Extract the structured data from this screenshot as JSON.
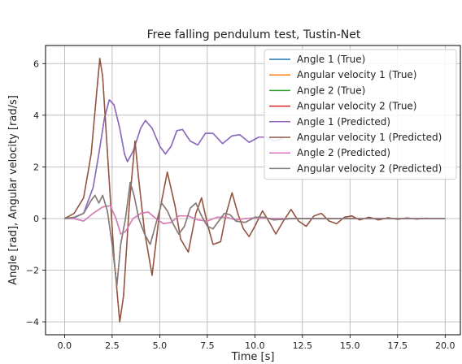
{
  "chart_data": {
    "type": "line",
    "title": "Free falling pendulum test, Tustin-Net",
    "xlabel": "Time [s]",
    "ylabel": "Angle [rad], Angular velocity [rad/s]",
    "xlim": [
      -1,
      20.8
    ],
    "ylim": [
      -4.5,
      6.7
    ],
    "xticks": [
      0.0,
      2.5,
      5.0,
      7.5,
      10.0,
      12.5,
      15.0,
      17.5,
      20.0
    ],
    "xtick_labels": [
      "0.0",
      "2.5",
      "5.0",
      "7.5",
      "10.0",
      "12.5",
      "15.0",
      "17.5",
      "20.0"
    ],
    "yticks": [
      -4,
      -2,
      0,
      2,
      4,
      6
    ],
    "ytick_labels": [
      "−4",
      "−2",
      "0",
      "2",
      "4",
      "6"
    ],
    "grid": true,
    "legend_position": "top-right",
    "series": [
      {
        "name": "Angle 1 (True)",
        "color": "#1f77b4",
        "points": [
          [
            0,
            0
          ],
          [
            0.5,
            0.03
          ],
          [
            1.0,
            0.2
          ],
          [
            1.5,
            1.2
          ],
          [
            1.8,
            2.5
          ],
          [
            2.1,
            3.9
          ],
          [
            2.35,
            4.6
          ],
          [
            2.6,
            4.4
          ],
          [
            2.9,
            3.5
          ],
          [
            3.15,
            2.5
          ],
          [
            3.3,
            2.2
          ],
          [
            3.6,
            2.6
          ],
          [
            4.0,
            3.5
          ],
          [
            4.25,
            3.8
          ],
          [
            4.6,
            3.5
          ],
          [
            5.0,
            2.8
          ],
          [
            5.3,
            2.5
          ],
          [
            5.6,
            2.8
          ],
          [
            5.9,
            3.4
          ],
          [
            6.2,
            3.45
          ],
          [
            6.6,
            3.0
          ],
          [
            7.0,
            2.85
          ],
          [
            7.4,
            3.3
          ],
          [
            7.8,
            3.3
          ],
          [
            8.3,
            2.9
          ],
          [
            8.8,
            3.2
          ],
          [
            9.2,
            3.25
          ],
          [
            9.7,
            2.95
          ],
          [
            10.2,
            3.15
          ],
          [
            10.6,
            3.15
          ],
          [
            11.0,
            3.0
          ],
          [
            11.5,
            3.1
          ]
        ]
      },
      {
        "name": "Angular velocity 1 (True)",
        "color": "#ff7f0e",
        "points": [
          [
            0,
            0
          ],
          [
            0.5,
            0.2
          ],
          [
            1.0,
            0.8
          ],
          [
            1.4,
            2.5
          ],
          [
            1.7,
            5.0
          ],
          [
            1.85,
            6.2
          ],
          [
            2.0,
            5.5
          ],
          [
            2.3,
            2.0
          ],
          [
            2.6,
            -1.5
          ],
          [
            2.9,
            -4.0
          ],
          [
            3.1,
            -3.0
          ],
          [
            3.4,
            0.5
          ],
          [
            3.7,
            3.0
          ],
          [
            3.9,
            1.5
          ],
          [
            4.2,
            -0.5
          ],
          [
            4.6,
            -2.2
          ],
          [
            5.0,
            0.3
          ],
          [
            5.4,
            1.8
          ],
          [
            5.8,
            0.5
          ],
          [
            6.1,
            -0.8
          ],
          [
            6.5,
            -1.3
          ],
          [
            6.9,
            0.2
          ],
          [
            7.2,
            0.8
          ],
          [
            7.5,
            -0.2
          ],
          [
            7.8,
            -1.0
          ],
          [
            8.2,
            -0.9
          ],
          [
            8.5,
            0.2
          ],
          [
            8.8,
            1.0
          ],
          [
            9.1,
            0.2
          ],
          [
            9.4,
            -0.4
          ],
          [
            9.7,
            -0.7
          ],
          [
            10.0,
            -0.3
          ],
          [
            10.4,
            0.3
          ],
          [
            10.8,
            -0.2
          ],
          [
            11.1,
            -0.6
          ],
          [
            11.5,
            -0.1
          ],
          [
            11.9,
            0.35
          ],
          [
            12.3,
            -0.1
          ],
          [
            12.7,
            -0.3
          ],
          [
            13.1,
            0.1
          ],
          [
            13.5,
            0.2
          ],
          [
            13.9,
            -0.1
          ],
          [
            14.3,
            -0.2
          ],
          [
            14.7,
            0.05
          ],
          [
            15.1,
            0.1
          ],
          [
            15.5,
            -0.05
          ],
          [
            16.0,
            0.05
          ],
          [
            16.5,
            -0.05
          ],
          [
            17.0,
            0.03
          ],
          [
            17.5,
            -0.03
          ],
          [
            18.0,
            0.02
          ],
          [
            18.5,
            -0.02
          ],
          [
            19.0,
            0.01
          ],
          [
            19.5,
            0.0
          ],
          [
            20.0,
            0.0
          ]
        ]
      },
      {
        "name": "Angle 2 (True)",
        "color": "#2ca02c",
        "points": [
          [
            0,
            0
          ],
          [
            0.5,
            0.0
          ],
          [
            1.0,
            -0.1
          ],
          [
            1.5,
            0.2
          ],
          [
            2.0,
            0.45
          ],
          [
            2.4,
            0.5
          ],
          [
            2.7,
            0.0
          ],
          [
            2.95,
            -0.6
          ],
          [
            3.2,
            -0.5
          ],
          [
            3.6,
            0.0
          ],
          [
            4.0,
            0.2
          ],
          [
            4.4,
            0.25
          ],
          [
            4.8,
            0.0
          ],
          [
            5.2,
            -0.2
          ],
          [
            5.6,
            -0.15
          ],
          [
            6.0,
            0.1
          ],
          [
            6.5,
            0.1
          ],
          [
            7.0,
            -0.05
          ],
          [
            7.5,
            -0.1
          ],
          [
            8.0,
            0.05
          ],
          [
            8.5,
            0.05
          ],
          [
            9.0,
            -0.05
          ],
          [
            9.5,
            0.0
          ],
          [
            10.0,
            0.02
          ],
          [
            11.0,
            0.0
          ],
          [
            12.0,
            0.0
          ],
          [
            20.0,
            0.0
          ]
        ]
      },
      {
        "name": "Angular velocity 2 (True)",
        "color": "#d62728",
        "points": [
          [
            0,
            0
          ],
          [
            0.5,
            0.05
          ],
          [
            1.0,
            0.2
          ],
          [
            1.4,
            0.7
          ],
          [
            1.6,
            0.9
          ],
          [
            1.8,
            0.6
          ],
          [
            2.0,
            0.9
          ],
          [
            2.25,
            0.3
          ],
          [
            2.5,
            -1.0
          ],
          [
            2.75,
            -2.6
          ],
          [
            2.95,
            -1.0
          ],
          [
            3.2,
            0.0
          ],
          [
            3.45,
            1.4
          ],
          [
            3.65,
            0.9
          ],
          [
            3.9,
            0.0
          ],
          [
            4.2,
            -0.6
          ],
          [
            4.5,
            -1.0
          ],
          [
            4.8,
            -0.2
          ],
          [
            5.1,
            0.6
          ],
          [
            5.4,
            0.3
          ],
          [
            5.7,
            -0.2
          ],
          [
            6.0,
            -0.6
          ],
          [
            6.3,
            -0.3
          ],
          [
            6.6,
            0.4
          ],
          [
            6.9,
            0.6
          ],
          [
            7.2,
            0.1
          ],
          [
            7.5,
            -0.3
          ],
          [
            7.8,
            -0.4
          ],
          [
            8.1,
            -0.1
          ],
          [
            8.4,
            0.2
          ],
          [
            8.7,
            0.15
          ],
          [
            9.0,
            -0.1
          ],
          [
            9.5,
            -0.15
          ],
          [
            10.0,
            0.05
          ],
          [
            10.5,
            0.05
          ],
          [
            11.0,
            -0.05
          ],
          [
            12.0,
            0.0
          ],
          [
            13.0,
            0.0
          ],
          [
            20.0,
            0.0
          ]
        ]
      },
      {
        "name": "Angle 1 (Predicted)",
        "color": "#9467bd",
        "points": [
          [
            0,
            0
          ],
          [
            0.5,
            0.03
          ],
          [
            1.0,
            0.2
          ],
          [
            1.5,
            1.2
          ],
          [
            1.8,
            2.5
          ],
          [
            2.1,
            3.9
          ],
          [
            2.35,
            4.6
          ],
          [
            2.6,
            4.4
          ],
          [
            2.9,
            3.5
          ],
          [
            3.15,
            2.5
          ],
          [
            3.3,
            2.2
          ],
          [
            3.6,
            2.6
          ],
          [
            4.0,
            3.5
          ],
          [
            4.25,
            3.8
          ],
          [
            4.6,
            3.5
          ],
          [
            5.0,
            2.8
          ],
          [
            5.3,
            2.5
          ],
          [
            5.6,
            2.8
          ],
          [
            5.9,
            3.4
          ],
          [
            6.2,
            3.45
          ],
          [
            6.6,
            3.0
          ],
          [
            7.0,
            2.85
          ],
          [
            7.4,
            3.3
          ],
          [
            7.8,
            3.3
          ],
          [
            8.3,
            2.9
          ],
          [
            8.8,
            3.2
          ],
          [
            9.2,
            3.25
          ],
          [
            9.7,
            2.95
          ],
          [
            10.2,
            3.15
          ],
          [
            10.6,
            3.15
          ],
          [
            11.0,
            3.0
          ],
          [
            11.5,
            3.1
          ]
        ]
      },
      {
        "name": "Angular velocity 1 (Predicted)",
        "color": "#8c564b",
        "points": [
          [
            0,
            0
          ],
          [
            0.5,
            0.2
          ],
          [
            1.0,
            0.8
          ],
          [
            1.4,
            2.5
          ],
          [
            1.7,
            5.0
          ],
          [
            1.85,
            6.2
          ],
          [
            2.0,
            5.5
          ],
          [
            2.3,
            2.0
          ],
          [
            2.6,
            -1.5
          ],
          [
            2.9,
            -4.0
          ],
          [
            3.1,
            -3.0
          ],
          [
            3.4,
            0.5
          ],
          [
            3.7,
            3.0
          ],
          [
            3.9,
            1.5
          ],
          [
            4.2,
            -0.5
          ],
          [
            4.6,
            -2.2
          ],
          [
            5.0,
            0.3
          ],
          [
            5.4,
            1.8
          ],
          [
            5.8,
            0.5
          ],
          [
            6.1,
            -0.8
          ],
          [
            6.5,
            -1.3
          ],
          [
            6.9,
            0.2
          ],
          [
            7.2,
            0.8
          ],
          [
            7.5,
            -0.2
          ],
          [
            7.8,
            -1.0
          ],
          [
            8.2,
            -0.9
          ],
          [
            8.5,
            0.2
          ],
          [
            8.8,
            1.0
          ],
          [
            9.1,
            0.2
          ],
          [
            9.4,
            -0.4
          ],
          [
            9.7,
            -0.7
          ],
          [
            10.0,
            -0.3
          ],
          [
            10.4,
            0.3
          ],
          [
            10.8,
            -0.2
          ],
          [
            11.1,
            -0.6
          ],
          [
            11.5,
            -0.1
          ],
          [
            11.9,
            0.35
          ],
          [
            12.3,
            -0.1
          ],
          [
            12.7,
            -0.3
          ],
          [
            13.1,
            0.1
          ],
          [
            13.5,
            0.2
          ],
          [
            13.9,
            -0.1
          ],
          [
            14.3,
            -0.2
          ],
          [
            14.7,
            0.05
          ],
          [
            15.1,
            0.1
          ],
          [
            15.5,
            -0.05
          ],
          [
            16.0,
            0.05
          ],
          [
            16.5,
            -0.05
          ],
          [
            17.0,
            0.03
          ],
          [
            17.5,
            -0.03
          ],
          [
            18.0,
            0.02
          ],
          [
            18.5,
            -0.02
          ],
          [
            19.0,
            0.01
          ],
          [
            19.5,
            0.0
          ],
          [
            20.0,
            0.0
          ]
        ]
      },
      {
        "name": "Angle 2 (Predicted)",
        "color": "#e377c2",
        "points": [
          [
            0,
            0
          ],
          [
            0.5,
            0.0
          ],
          [
            1.0,
            -0.1
          ],
          [
            1.5,
            0.2
          ],
          [
            2.0,
            0.45
          ],
          [
            2.4,
            0.5
          ],
          [
            2.7,
            0.0
          ],
          [
            2.95,
            -0.6
          ],
          [
            3.2,
            -0.5
          ],
          [
            3.6,
            0.0
          ],
          [
            4.0,
            0.2
          ],
          [
            4.4,
            0.25
          ],
          [
            4.8,
            0.0
          ],
          [
            5.2,
            -0.2
          ],
          [
            5.6,
            -0.15
          ],
          [
            6.0,
            0.1
          ],
          [
            6.5,
            0.1
          ],
          [
            7.0,
            -0.05
          ],
          [
            7.5,
            -0.1
          ],
          [
            8.0,
            0.05
          ],
          [
            8.5,
            0.05
          ],
          [
            9.0,
            -0.05
          ],
          [
            9.5,
            0.0
          ],
          [
            10.0,
            0.02
          ],
          [
            11.0,
            0.0
          ],
          [
            12.0,
            0.0
          ],
          [
            20.0,
            0.0
          ]
        ]
      },
      {
        "name": "Angular velocity 2 (Predicted)",
        "color": "#7f7f7f",
        "points": [
          [
            0,
            0
          ],
          [
            0.5,
            0.05
          ],
          [
            1.0,
            0.2
          ],
          [
            1.4,
            0.7
          ],
          [
            1.6,
            0.9
          ],
          [
            1.8,
            0.6
          ],
          [
            2.0,
            0.9
          ],
          [
            2.25,
            0.3
          ],
          [
            2.5,
            -1.0
          ],
          [
            2.75,
            -2.6
          ],
          [
            2.95,
            -1.0
          ],
          [
            3.2,
            0.0
          ],
          [
            3.45,
            1.4
          ],
          [
            3.65,
            0.9
          ],
          [
            3.9,
            0.0
          ],
          [
            4.2,
            -0.6
          ],
          [
            4.5,
            -1.0
          ],
          [
            4.8,
            -0.2
          ],
          [
            5.1,
            0.6
          ],
          [
            5.4,
            0.3
          ],
          [
            5.7,
            -0.2
          ],
          [
            6.0,
            -0.6
          ],
          [
            6.3,
            -0.3
          ],
          [
            6.6,
            0.4
          ],
          [
            6.9,
            0.6
          ],
          [
            7.2,
            0.1
          ],
          [
            7.5,
            -0.3
          ],
          [
            7.8,
            -0.4
          ],
          [
            8.1,
            -0.1
          ],
          [
            8.4,
            0.2
          ],
          [
            8.7,
            0.15
          ],
          [
            9.0,
            -0.1
          ],
          [
            9.5,
            -0.15
          ],
          [
            10.0,
            0.05
          ],
          [
            10.5,
            0.05
          ],
          [
            11.0,
            -0.05
          ],
          [
            12.0,
            0.0
          ],
          [
            13.0,
            0.0
          ],
          [
            20.0,
            0.0
          ]
        ]
      }
    ]
  }
}
